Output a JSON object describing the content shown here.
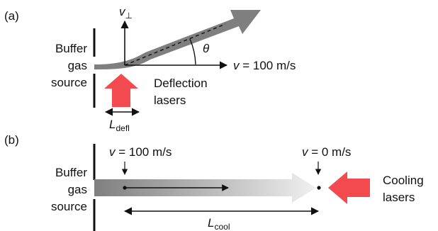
{
  "panel_a": {
    "tag": "(a)",
    "source_label": [
      "Buffer",
      "gas",
      "source"
    ],
    "axis_y": {
      "symbol": "v",
      "subscript": "⊥"
    },
    "angle": "θ",
    "axis_x": {
      "symbol": "v",
      "text": " = 100 m/s"
    },
    "laser_label": [
      "Deflection",
      "lasers"
    ],
    "length": {
      "symbol": "L",
      "subscript": "defl"
    }
  },
  "panel_b": {
    "tag": "(b)",
    "source_label": [
      "Buffer",
      "gas",
      "source"
    ],
    "start_velocity": {
      "symbol": "v",
      "text": " = 100 m/s"
    },
    "end_velocity": {
      "symbol": "v",
      "text": " = 0 m/s"
    },
    "laser_label": [
      "Cooling",
      "lasers"
    ],
    "length": {
      "symbol": "L",
      "subscript": "cool"
    }
  },
  "colors": {
    "beam": "#7f7f7f",
    "laser": "#f24a4f",
    "ink": "#111111"
  }
}
